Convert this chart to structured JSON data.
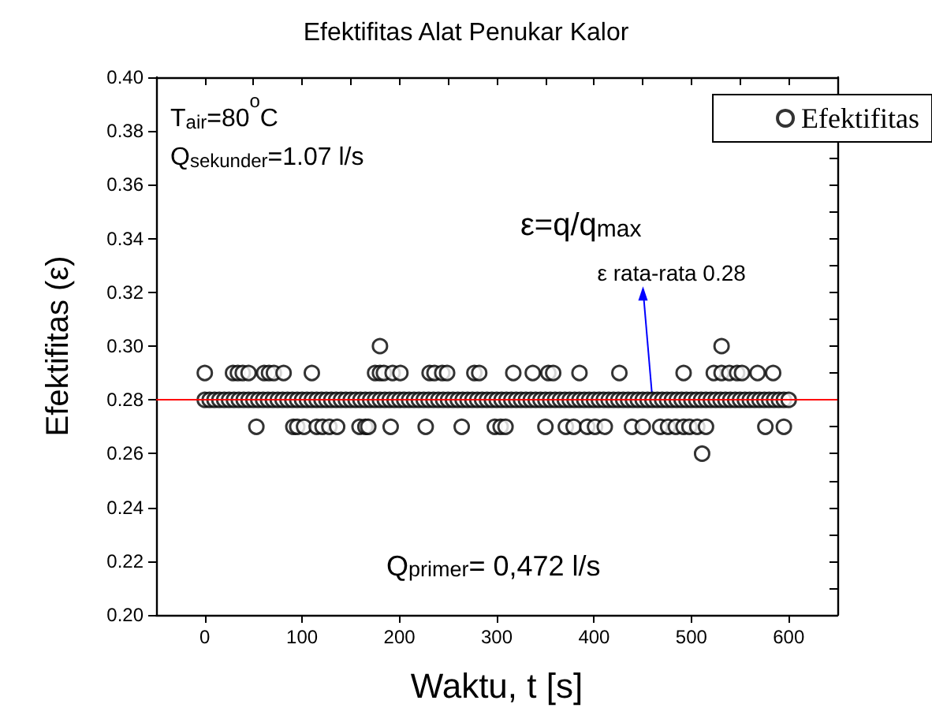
{
  "chart_data": {
    "type": "scatter",
    "title": "Efektifitas Alat Penukar Kalor",
    "xlabel": "Waktu, t [s]",
    "ylabel": "Efektifitas (ε)",
    "xlim": [
      -50,
      650
    ],
    "xticks": [
      0,
      100,
      200,
      300,
      400,
      500,
      600
    ],
    "ylim": [
      0.2,
      0.4
    ],
    "yticks": [
      {
        "value": 0.2,
        "label": "0.20"
      },
      0.22,
      0.24,
      0.26,
      0.28,
      {
        "value": 0.3,
        "label": "0.30"
      },
      0.32,
      0.34,
      0.36,
      0.38,
      {
        "value": 0.4,
        "label": "0.40"
      }
    ],
    "grid": false,
    "legend": "top right",
    "marker": "circle",
    "series": [
      {
        "name": "Efektifitas",
        "color": "#000000",
        "x": [
          0,
          5,
          10,
          15,
          20,
          25,
          30,
          35,
          40,
          45,
          50,
          55,
          60,
          65,
          70,
          75,
          80,
          85,
          90,
          95,
          100,
          105,
          110,
          115,
          120,
          125,
          130,
          135,
          140,
          145,
          150,
          155,
          160,
          165,
          170,
          175,
          180,
          185,
          190,
          195,
          200,
          205,
          210,
          215,
          220,
          225,
          230,
          235,
          240,
          245,
          250,
          255,
          260,
          265,
          270,
          275,
          280,
          285,
          290,
          295,
          300,
          305,
          310,
          315,
          320,
          325,
          330,
          335,
          340,
          345,
          350,
          355,
          360,
          365,
          370,
          375,
          380,
          385,
          390,
          395,
          400,
          405,
          410,
          415,
          420,
          425,
          430,
          435,
          440,
          445,
          450,
          455,
          460,
          465,
          470,
          475,
          480,
          485,
          490,
          495,
          500,
          505,
          510,
          515,
          520,
          525,
          530,
          535,
          540,
          545,
          550,
          555,
          560,
          565,
          570,
          575,
          580,
          585,
          590,
          595,
          600,
          0,
          29,
          34,
          39,
          45,
          61,
          66,
          71,
          81,
          110,
          175,
          180,
          184,
          193,
          201,
          231,
          236,
          244,
          249,
          277,
          282,
          317,
          337,
          353,
          358,
          385,
          426,
          492,
          523,
          531,
          539,
          547,
          552,
          568,
          584,
          180,
          531,
          53,
          91,
          95,
          102,
          115,
          121,
          128,
          136,
          159,
          165,
          168,
          191,
          227,
          264,
          298,
          304,
          309,
          350,
          371,
          379,
          393,
          401,
          411,
          439,
          450,
          468,
          476,
          484,
          492,
          498,
          506,
          515,
          576,
          595,
          511
        ],
        "values": [
          0.28,
          0.28,
          0.28,
          0.28,
          0.28,
          0.28,
          0.28,
          0.28,
          0.28,
          0.28,
          0.28,
          0.28,
          0.28,
          0.28,
          0.28,
          0.28,
          0.28,
          0.28,
          0.28,
          0.28,
          0.28,
          0.28,
          0.28,
          0.28,
          0.28,
          0.28,
          0.28,
          0.28,
          0.28,
          0.28,
          0.28,
          0.28,
          0.28,
          0.28,
          0.28,
          0.28,
          0.28,
          0.28,
          0.28,
          0.28,
          0.28,
          0.28,
          0.28,
          0.28,
          0.28,
          0.28,
          0.28,
          0.28,
          0.28,
          0.28,
          0.28,
          0.28,
          0.28,
          0.28,
          0.28,
          0.28,
          0.28,
          0.28,
          0.28,
          0.28,
          0.28,
          0.28,
          0.28,
          0.28,
          0.28,
          0.28,
          0.28,
          0.28,
          0.28,
          0.28,
          0.28,
          0.28,
          0.28,
          0.28,
          0.28,
          0.28,
          0.28,
          0.28,
          0.28,
          0.28,
          0.28,
          0.28,
          0.28,
          0.28,
          0.28,
          0.28,
          0.28,
          0.28,
          0.28,
          0.28,
          0.28,
          0.28,
          0.28,
          0.28,
          0.28,
          0.28,
          0.28,
          0.28,
          0.28,
          0.28,
          0.28,
          0.28,
          0.28,
          0.28,
          0.28,
          0.28,
          0.28,
          0.28,
          0.28,
          0.28,
          0.28,
          0.28,
          0.28,
          0.28,
          0.28,
          0.28,
          0.28,
          0.28,
          0.28,
          0.28,
          0.28,
          0.29,
          0.29,
          0.29,
          0.29,
          0.29,
          0.29,
          0.29,
          0.29,
          0.29,
          0.29,
          0.29,
          0.29,
          0.29,
          0.29,
          0.29,
          0.29,
          0.29,
          0.29,
          0.29,
          0.29,
          0.29,
          0.29,
          0.29,
          0.29,
          0.29,
          0.29,
          0.29,
          0.29,
          0.29,
          0.29,
          0.29,
          0.29,
          0.29,
          0.29,
          0.29,
          0.3,
          0.3,
          0.27,
          0.27,
          0.27,
          0.27,
          0.27,
          0.27,
          0.27,
          0.27,
          0.27,
          0.27,
          0.27,
          0.27,
          0.27,
          0.27,
          0.27,
          0.27,
          0.27,
          0.27,
          0.27,
          0.27,
          0.27,
          0.27,
          0.27,
          0.27,
          0.27,
          0.27,
          0.27,
          0.27,
          0.27,
          0.27,
          0.27,
          0.27,
          0.27,
          0.27,
          0.26
        ]
      }
    ],
    "ref_lines": [
      {
        "axis": "y",
        "value": 0.28,
        "color": "#ff0000",
        "line_style": "solid"
      }
    ],
    "annotations": [
      "T$_{air}$=80$^{o}$C",
      "Q$_{sekunder}$=1.07 l/s",
      "ε=q/q$_{max}$",
      "Q$_{primer}$= 0,472 l/s",
      {
        "text": "ε rata-rata 0.28",
        "x": 460,
        "y": 0.28
      }
    ]
  }
}
